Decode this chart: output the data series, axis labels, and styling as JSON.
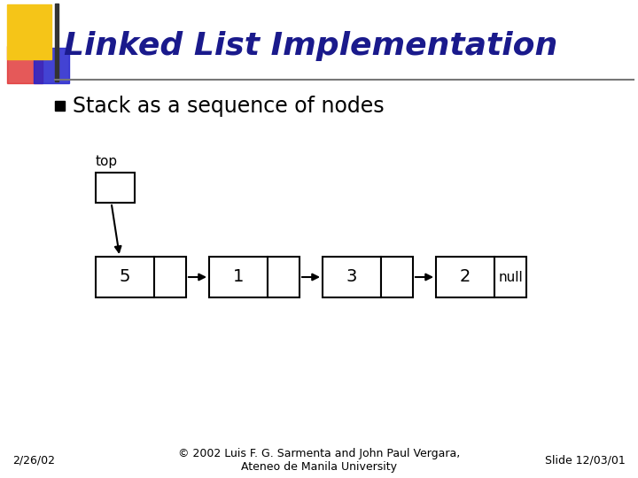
{
  "title": "Linked List Implementation",
  "subtitle": "Stack as a sequence of nodes",
  "bg_color": "#ffffff",
  "title_color": "#1a1a8c",
  "body_color": "#000000",
  "nodes": [
    "5",
    "1",
    "3",
    "2"
  ],
  "null_label": "null",
  "top_label": "top",
  "footer_left": "2/26/02",
  "footer_center": "© 2002 Luis F. G. Sarmenta and John Paul Vergara,\nAteneo de Manila University",
  "footer_right": "Slide 12/03/01",
  "header_yellow": "#f5c518",
  "header_red": "#dd2222",
  "header_blue": "#2222cc",
  "header_vbar": "#333333"
}
